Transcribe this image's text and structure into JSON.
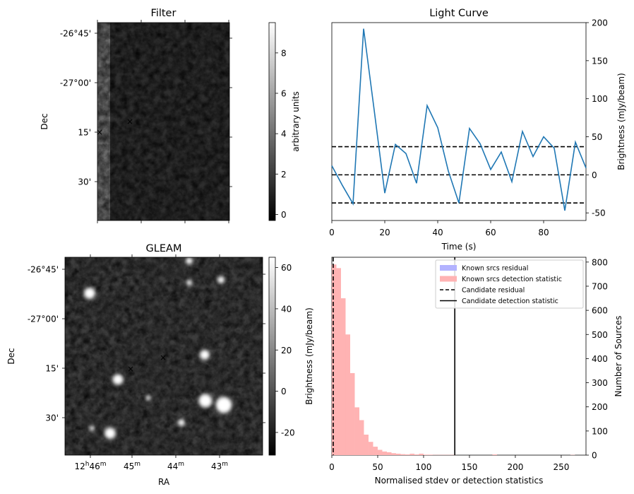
{
  "chart_data": [
    {
      "type": "image",
      "title": "Filter",
      "ylabel": "Dec",
      "y_ticks": [
        "-26°45'",
        "-27°00'",
        "15'",
        "30'"
      ],
      "colorbar": {
        "label": "arbitrary units",
        "ticks": [
          "0",
          "2",
          "4",
          "6",
          "8"
        ],
        "range": [
          -0.3,
          9.5
        ],
        "cmap": "gray"
      },
      "markers": [
        {
          "symbol": "×",
          "color": "#dd0000",
          "name": "candidate"
        },
        {
          "symbol": "×",
          "color": "#0000dd",
          "name": "reference"
        }
      ]
    },
    {
      "type": "line",
      "title": "Light Curve",
      "xlabel": "Time (s)",
      "ylabel": "Brightness (mJy/beam)",
      "xlim": [
        0,
        96
      ],
      "ylim": [
        -60,
        200
      ],
      "x_ticks": [
        0,
        20,
        40,
        60,
        80
      ],
      "y_ticks": [
        -50,
        0,
        50,
        100,
        150,
        200
      ],
      "series": [
        {
          "color": "#1f77b4",
          "x": [
            0,
            4,
            8,
            12,
            16,
            20,
            24,
            28,
            32,
            36,
            40,
            44,
            48,
            52,
            56,
            60,
            64,
            68,
            72,
            76,
            80,
            84,
            88,
            92,
            96
          ],
          "values": [
            12,
            -14,
            -38,
            192,
            85,
            -24,
            40,
            28,
            -11,
            91,
            62,
            5,
            -37,
            61,
            41,
            7,
            30,
            -9,
            57,
            24,
            50,
            35,
            -47,
            43,
            9
          ]
        }
      ],
      "hlines": [
        {
          "y": 37,
          "style": "dashed",
          "color": "#000000"
        },
        {
          "y": 0,
          "style": "dashed",
          "color": "#000000"
        },
        {
          "y": -37,
          "style": "dashed",
          "color": "#000000"
        }
      ]
    },
    {
      "type": "image",
      "title": "GLEAM",
      "xlabel": "RA",
      "ylabel": "Dec",
      "x_ticks": [
        "12h46m",
        "45m",
        "44m",
        "43m"
      ],
      "y_ticks": [
        "-26°45'",
        "-27°00'",
        "15'",
        "30'"
      ],
      "colorbar": {
        "label": "Brightness (mJy/beam)",
        "ticks": [
          "-20",
          "0",
          "20",
          "40",
          "60"
        ],
        "range": [
          -31,
          65
        ],
        "cmap": "gray"
      },
      "markers": [
        {
          "symbol": "×",
          "color": "#dd0000",
          "name": "candidate"
        },
        {
          "symbol": "×",
          "color": "#0000dd",
          "name": "reference"
        }
      ]
    },
    {
      "type": "histogram",
      "xlabel": "Normalised stdev or detection statistics",
      "ylabel": "Number of Sources",
      "xlim": [
        0,
        277
      ],
      "ylim": [
        0,
        820
      ],
      "x_ticks": [
        0,
        50,
        100,
        150,
        200,
        250
      ],
      "y_ticks": [
        0,
        100,
        200,
        300,
        400,
        500,
        600,
        700,
        800
      ],
      "bin_width": 5,
      "series": [
        {
          "name": "Known srcs detection statistic",
          "color": "#ffb3b3",
          "bin_starts": [
            0,
            5,
            10,
            15,
            20,
            25,
            30,
            35,
            40,
            45,
            50,
            55,
            60,
            65,
            70,
            75,
            80,
            85,
            90,
            95,
            100,
            105,
            110,
            115,
            120,
            125,
            130,
            175,
            260
          ],
          "values": [
            790,
            775,
            650,
            500,
            340,
            198,
            145,
            85,
            55,
            35,
            22,
            15,
            12,
            8,
            6,
            4,
            3,
            6,
            3,
            6,
            2,
            2,
            1,
            1,
            1,
            1,
            1,
            3,
            1
          ]
        }
      ],
      "vlines": [
        {
          "name": "Candidate residual",
          "x": 1.5,
          "style": "dashed",
          "color": "#000000"
        },
        {
          "name": "Candidate detection statistic",
          "x": 134,
          "style": "solid",
          "color": "#000000"
        }
      ],
      "legend": {
        "placement": "top-right",
        "entries": [
          {
            "label": "Known srcs residual",
            "kind": "patch",
            "color": "#b3b3ff"
          },
          {
            "label": "Known srcs detection statistic",
            "kind": "patch",
            "color": "#ffb3b3"
          },
          {
            "label": "Candidate residual",
            "kind": "dashed",
            "color": "#000000"
          },
          {
            "label": "Candidate detection statistic",
            "kind": "solid",
            "color": "#000000"
          }
        ]
      },
      "left_ylabel": "Brightness (mJy/beam)"
    }
  ]
}
